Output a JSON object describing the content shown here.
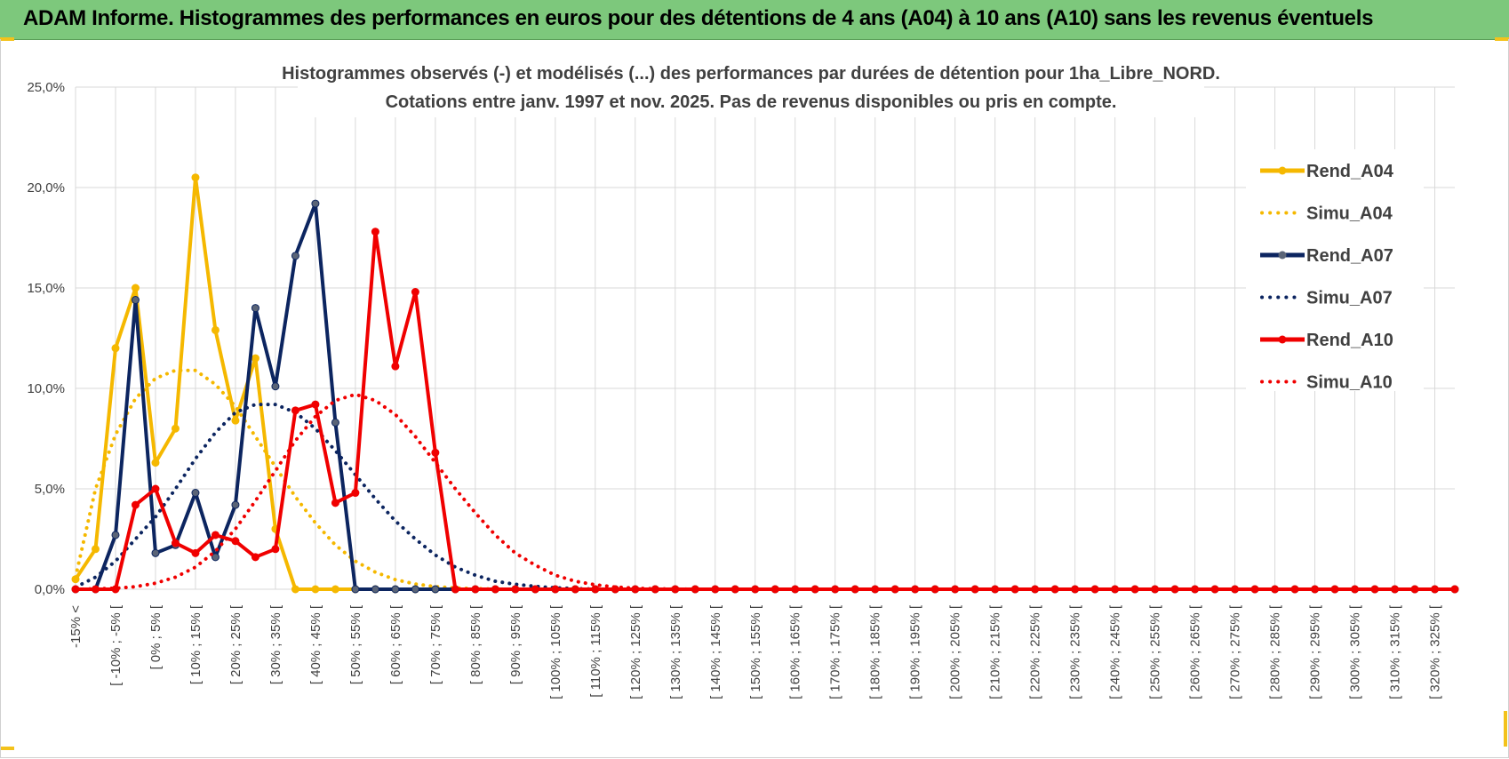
{
  "header": {
    "title": "ADAM Informe. Histogrammes des performances en euros pour des détentions de 4 ans (A04) à 10 ans (A10) sans les revenus éventuels"
  },
  "colors": {
    "header_bg": "#7dc87c",
    "a04": "#f5b800",
    "a07": "#0c2560",
    "a10": "#f00000",
    "grid": "#d9d9d9"
  },
  "chart_data": {
    "type": "line",
    "title": "Histogrammes observés (-) et modélisés (...) des performances par durées de détention pour 1ha_Libre_NORD.",
    "subtitle": "Cotations entre janv. 1997 et nov. 2025. Pas de revenus disponibles ou pris en compte.",
    "ylim": [
      0,
      25
    ],
    "yticks": [
      "0,0%",
      "5,0%",
      "10,0%",
      "15,0%",
      "20,0%",
      "25,0%"
    ],
    "grid": true,
    "legend_position": "right",
    "categories": [
      "-15% <",
      "[ -15% ; -10% [",
      "[ -10% ; -5% [",
      "[ -5% ; 0% [",
      "[ 0% ; 5% [",
      "[ 5% ; 10% [",
      "[ 10% ; 15% [",
      "[ 15% ; 20% [",
      "[ 20% ; 25% [",
      "[ 25% ; 30% [",
      "[ 30% ; 35% [",
      "[ 35% ; 40% [",
      "[ 40% ; 45% [",
      "[ 45% ; 50% [",
      "[ 50% ; 55% [",
      "[ 55% ; 60% [",
      "[ 60% ; 65% [",
      "[ 65% ; 70% [",
      "[ 70% ; 75% [",
      "[ 75% ; 80% [",
      "[ 80% ; 85% [",
      "[ 85% ; 90% [",
      "[ 90% ; 95% [",
      "[ 95% ; 100% [",
      "[ 100% ; 105% [",
      "[ 105% ; 110% [",
      "[ 110% ; 115% [",
      "[ 115% ; 120% [",
      "[ 120% ; 125% [",
      "[ 125% ; 130% [",
      "[ 130% ; 135% [",
      "[ 135% ; 140% [",
      "[ 140% ; 145% [",
      "[ 145% ; 150% [",
      "[ 150% ; 155% [",
      "[ 155% ; 160% [",
      "[ 160% ; 165% [",
      "[ 165% ; 170% [",
      "[ 170% ; 175% [",
      "[ 175% ; 180% [",
      "[ 180% ; 185% [",
      "[ 185% ; 190% [",
      "[ 190% ; 195% [",
      "[ 195% ; 200% [",
      "[ 200% ; 205% [",
      "[ 205% ; 210% [",
      "[ 210% ; 215% [",
      "[ 215% ; 220% [",
      "[ 220% ; 225% [",
      "[ 225% ; 230% [",
      "[ 230% ; 235% [",
      "[ 235% ; 240% [",
      "[ 240% ; 245% [",
      "[ 245% ; 250% [",
      "[ 250% ; 255% [",
      "[ 255% ; 260% [",
      "[ 260% ; 265% [",
      "[ 265% ; 270% [",
      "[ 270% ; 275% [",
      "[ 275% ; 280% [",
      "[ 280% ; 285% [",
      "[ 285% ; 290% [",
      "[ 290% ; 295% [",
      "[ 295% ; 300% [",
      "[ 300% ; 305% [",
      "[ 305% ; 310% [",
      "[ 310% ; 315% [",
      "[ 315% ; 320% [",
      "[ 320% ; 325% [",
      "[ 325% ; 330% ["
    ],
    "visible_xtick_labels": [
      "-15% <",
      "[ -10% ; -5% [",
      "[ 0% ; 5% [",
      "[ 10% ; 15% [",
      "[ 20% ; 25% [",
      "[ 30% ; 35% [",
      "[ 40% ; 45% [",
      "[ 50% ; 55% [",
      "[ 60% ; 65% [",
      "[ 70% ; 75% [",
      "[ 80% ; 85% [",
      "[ 90% ; 95% [",
      "[ 100% ; 105% [",
      "[ 110% ; 115% [",
      "[ 120% ; 125% [",
      "[ 130% ; 135% [",
      "[ 140% ; 145% [",
      "[ 150% ; 155% [",
      "[ 160% ; 165% [",
      "[ 170% ; 175% [",
      "[ 180% ; 185% [",
      "[ 190% ; 195% [",
      "[ 200% ; 205% [",
      "[ 210% ; 215% [",
      "[ 220% ; 225% [",
      "[ 230% ; 235% [",
      "[ 240% ; 245% [",
      "[ 250% ; 255% [",
      "[ 260% ; 265% [",
      "[ 270% ; 275% [",
      "[ 280% ; 285% [",
      "[ 290% ; 295% [",
      "[ 300% ; 305% [",
      "[ 310% ; 315% [",
      "[ 320% ; 325% ["
    ],
    "series": [
      {
        "name": "Rend_A04",
        "style": "solid-markers",
        "color": "#f5b800",
        "values": [
          0.5,
          2.0,
          12.0,
          15.0,
          6.3,
          8.0,
          20.5,
          12.9,
          8.4,
          11.5,
          3.0,
          0,
          0,
          0,
          0,
          0,
          0,
          0,
          0,
          0,
          0,
          0,
          0,
          0,
          0,
          0,
          0,
          0,
          0,
          0,
          0,
          0,
          0,
          0,
          0,
          0,
          0,
          0,
          0,
          0,
          0,
          0,
          0,
          0,
          0,
          0,
          0,
          0,
          0,
          0,
          0,
          0,
          0,
          0,
          0,
          0,
          0,
          0,
          0,
          0,
          0,
          0,
          0,
          0,
          0,
          0,
          0,
          0,
          0,
          0
        ]
      },
      {
        "name": "Simu_A04",
        "style": "dotted",
        "color": "#f5b800",
        "values": [
          0.6,
          5.0,
          7.7,
          9.5,
          10.5,
          10.9,
          10.9,
          10.2,
          9.1,
          7.6,
          6.1,
          4.6,
          3.3,
          2.2,
          1.4,
          0.85,
          0.48,
          0.26,
          0.13,
          0.06,
          0.03,
          0.01,
          0,
          0,
          0,
          0,
          0,
          0,
          0,
          0,
          0,
          0,
          0,
          0,
          0,
          0,
          0,
          0,
          0,
          0,
          0,
          0,
          0,
          0,
          0,
          0,
          0,
          0,
          0,
          0,
          0,
          0,
          0,
          0,
          0,
          0,
          0,
          0,
          0,
          0,
          0,
          0,
          0,
          0,
          0,
          0,
          0,
          0,
          0,
          0
        ]
      },
      {
        "name": "Rend_A07",
        "style": "solid-markers",
        "color": "#0c2560",
        "values": [
          0,
          0,
          2.7,
          14.4,
          1.8,
          2.2,
          4.8,
          1.6,
          4.2,
          14.0,
          10.1,
          16.6,
          19.2,
          8.3,
          0,
          0,
          0,
          0,
          0,
          0,
          0,
          0,
          0,
          0,
          0,
          0,
          0,
          0,
          0,
          0,
          0,
          0,
          0,
          0,
          0,
          0,
          0,
          0,
          0,
          0,
          0,
          0,
          0,
          0,
          0,
          0,
          0,
          0,
          0,
          0,
          0,
          0,
          0,
          0,
          0,
          0,
          0,
          0,
          0,
          0,
          0,
          0,
          0,
          0,
          0,
          0,
          0,
          0,
          0,
          0
        ]
      },
      {
        "name": "Simu_A07",
        "style": "dotted",
        "color": "#0c2560",
        "values": [
          0.1,
          0.6,
          1.4,
          2.5,
          3.6,
          5.0,
          6.5,
          7.8,
          8.8,
          9.2,
          9.2,
          8.8,
          8.0,
          6.9,
          5.7,
          4.5,
          3.4,
          2.5,
          1.7,
          1.1,
          0.7,
          0.4,
          0.25,
          0.14,
          0.07,
          0.03,
          0.01,
          0,
          0,
          0,
          0,
          0,
          0,
          0,
          0,
          0,
          0,
          0,
          0,
          0,
          0,
          0,
          0,
          0,
          0,
          0,
          0,
          0,
          0,
          0,
          0,
          0,
          0,
          0,
          0,
          0,
          0,
          0,
          0,
          0,
          0,
          0,
          0,
          0,
          0,
          0,
          0,
          0,
          0,
          0
        ]
      },
      {
        "name": "Rend_A10",
        "style": "solid-markers",
        "color": "#f00000",
        "values": [
          0,
          0,
          0,
          4.2,
          5.0,
          2.3,
          1.8,
          2.7,
          2.4,
          1.6,
          2.0,
          8.9,
          9.2,
          4.3,
          4.8,
          17.8,
          11.1,
          14.8,
          6.8,
          0,
          0,
          0,
          0,
          0,
          0,
          0,
          0,
          0,
          0,
          0,
          0,
          0,
          0,
          0,
          0,
          0,
          0,
          0,
          0,
          0,
          0,
          0,
          0,
          0,
          0,
          0,
          0,
          0,
          0,
          0,
          0,
          0,
          0,
          0,
          0,
          0,
          0,
          0,
          0,
          0,
          0,
          0,
          0,
          0,
          0,
          0,
          0,
          0,
          0,
          0
        ]
      },
      {
        "name": "Simu_A10",
        "style": "dotted",
        "color": "#f00000",
        "values": [
          0,
          0.02,
          0.05,
          0.13,
          0.3,
          0.6,
          1.1,
          1.9,
          3.0,
          4.4,
          5.9,
          7.4,
          8.6,
          9.4,
          9.7,
          9.4,
          8.7,
          7.6,
          6.3,
          5.0,
          3.8,
          2.7,
          1.8,
          1.2,
          0.7,
          0.4,
          0.22,
          0.11,
          0.05,
          0.02,
          0.01,
          0,
          0,
          0,
          0,
          0,
          0,
          0,
          0,
          0,
          0,
          0,
          0,
          0,
          0,
          0,
          0,
          0,
          0,
          0,
          0,
          0,
          0,
          0,
          0,
          0,
          0,
          0,
          0,
          0,
          0,
          0,
          0,
          0,
          0,
          0,
          0,
          0,
          0,
          0
        ]
      }
    ]
  }
}
